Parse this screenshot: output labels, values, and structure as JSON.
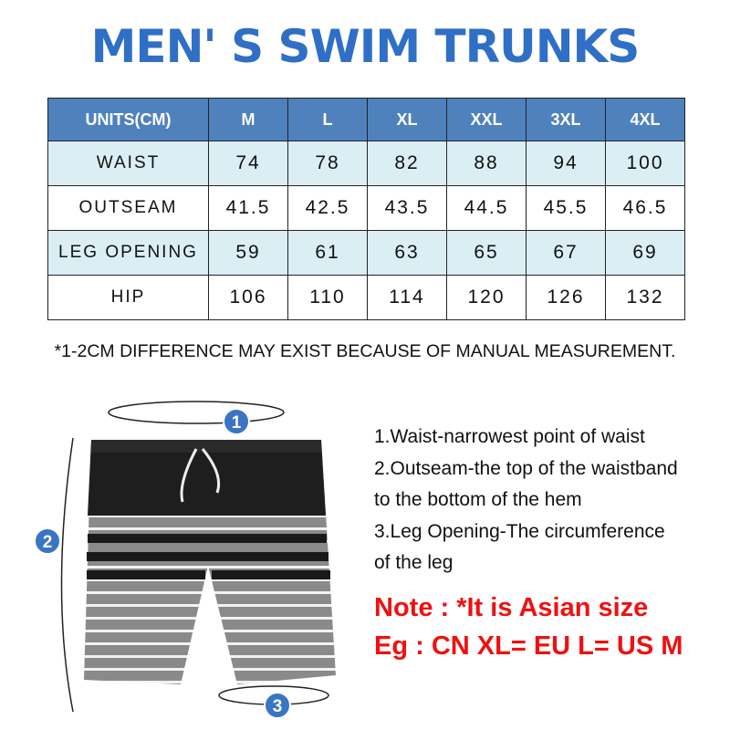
{
  "title": "MEN' S SWIM TRUNKS",
  "table": {
    "headers": [
      "UNITS(CM)",
      "M",
      "L",
      "XL",
      "XXL",
      "3XL",
      "4XL"
    ],
    "rows": [
      {
        "label": "WAIST",
        "values": [
          "74",
          "78",
          "82",
          "88",
          "94",
          "100"
        ]
      },
      {
        "label": "OUTSEAM",
        "values": [
          "41.5",
          "42.5",
          "43.5",
          "44.5",
          "45.5",
          "46.5"
        ]
      },
      {
        "label": "LEG OPENING",
        "values": [
          "59",
          "61",
          "63",
          "65",
          "67",
          "69"
        ]
      },
      {
        "label": "HIP",
        "values": [
          "106",
          "110",
          "114",
          "120",
          "126",
          "132"
        ]
      }
    ]
  },
  "footnote": "*1-2CM DIFFERENCE MAY EXIST BECAUSE OF MANUAL MEASUREMENT.",
  "markers": [
    "1",
    "2",
    "3"
  ],
  "instructions": [
    "1.Waist-narrowest point of waist",
    "2.Outseam-the top of the waistband",
    "to the bottom of the hem",
    "3.Leg Opening-The circumference",
    "of the leg"
  ],
  "note": "Note : *It is Asian size",
  "example": "Eg : CN XL= EU L= US M",
  "colors": {
    "title": "#2f6fc6",
    "header": "#4f81bd",
    "alt_row": "#dbeef4",
    "note": "#f01010"
  }
}
